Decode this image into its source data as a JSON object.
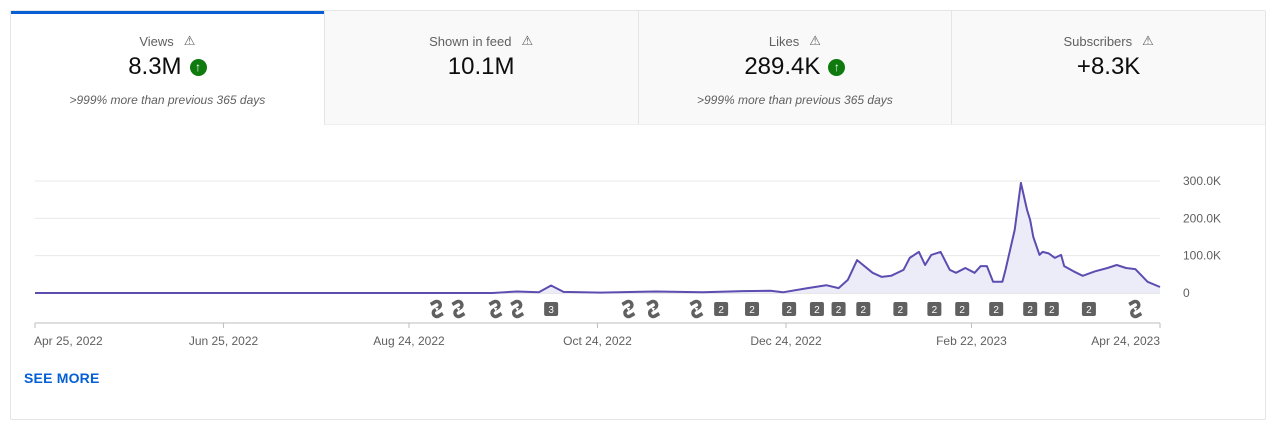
{
  "tabs": [
    {
      "label": "Views",
      "value": "8.3M",
      "trend": "up",
      "comparison": ">999% more than previous 365 days",
      "selected": true
    },
    {
      "label": "Shown in feed",
      "value": "10.1M",
      "trend": null,
      "comparison": "",
      "selected": false
    },
    {
      "label": "Likes",
      "value": "289.4K",
      "trend": "up",
      "comparison": ">999% more than previous 365 days",
      "selected": false
    },
    {
      "label": "Subscribers",
      "value": "+8.3K",
      "trend": null,
      "comparison": "",
      "selected": false
    }
  ],
  "icons": {
    "warning": "⚠",
    "up": "↑",
    "shorts": "shorts-icon"
  },
  "see_more": "SEE MORE",
  "colors": {
    "accent": "#065fd4",
    "line": "#5c4db1",
    "fill": "#ecebf8",
    "trend_up": "#0f7b0f",
    "marker": "#606060"
  },
  "chart_data": {
    "type": "area",
    "xlim": [
      "2022-04-25",
      "2023-04-24"
    ],
    "ylim": [
      0,
      300000
    ],
    "x_ticks": [
      {
        "date": "2022-04-25",
        "label": "Apr 25, 2022"
      },
      {
        "date": "2022-06-25",
        "label": "Jun 25, 2022"
      },
      {
        "date": "2022-08-24",
        "label": "Aug 24, 2022"
      },
      {
        "date": "2022-10-24",
        "label": "Oct 24, 2022"
      },
      {
        "date": "2022-12-24",
        "label": "Dec 24, 2022"
      },
      {
        "date": "2023-02-22",
        "label": "Feb 22, 2023"
      },
      {
        "date": "2023-04-24",
        "label": "Apr 24, 2023"
      }
    ],
    "y_ticks": [
      {
        "value": 0,
        "label": "0"
      },
      {
        "value": 100000,
        "label": "100.0K"
      },
      {
        "value": 200000,
        "label": "200.0K"
      },
      {
        "value": 300000,
        "label": "300.0K"
      }
    ],
    "grid": true,
    "points": [
      [
        "2022-04-25",
        0
      ],
      [
        "2022-09-20",
        0
      ],
      [
        "2022-09-28",
        4000
      ],
      [
        "2022-10-05",
        2000
      ],
      [
        "2022-10-09",
        20000
      ],
      [
        "2022-10-13",
        3000
      ],
      [
        "2022-10-25",
        1000
      ],
      [
        "2022-11-12",
        4000
      ],
      [
        "2022-11-27",
        2000
      ],
      [
        "2022-12-10",
        5000
      ],
      [
        "2022-12-19",
        6000
      ],
      [
        "2022-12-23",
        2000
      ],
      [
        "2022-12-31",
        13000
      ],
      [
        "2023-01-06",
        21000
      ],
      [
        "2023-01-10",
        13000
      ],
      [
        "2023-01-13",
        35000
      ],
      [
        "2023-01-16",
        88000
      ],
      [
        "2023-01-21",
        54000
      ],
      [
        "2023-01-24",
        43000
      ],
      [
        "2023-01-27",
        46000
      ],
      [
        "2023-01-31",
        62000
      ],
      [
        "2023-02-02",
        94000
      ],
      [
        "2023-02-05",
        110000
      ],
      [
        "2023-02-07",
        75000
      ],
      [
        "2023-02-09",
        102000
      ],
      [
        "2023-02-12",
        110000
      ],
      [
        "2023-02-15",
        62000
      ],
      [
        "2023-02-17",
        54000
      ],
      [
        "2023-02-20",
        67000
      ],
      [
        "2023-02-23",
        54000
      ],
      [
        "2023-02-25",
        72000
      ],
      [
        "2023-02-27",
        72000
      ],
      [
        "2023-03-01",
        30000
      ],
      [
        "2023-03-04",
        30000
      ],
      [
        "2023-03-05",
        62000
      ],
      [
        "2023-03-08",
        169000
      ],
      [
        "2023-03-10",
        295000
      ],
      [
        "2023-03-12",
        222000
      ],
      [
        "2023-03-13",
        195000
      ],
      [
        "2023-03-14",
        150000
      ],
      [
        "2023-03-16",
        102000
      ],
      [
        "2023-03-17",
        110000
      ],
      [
        "2023-03-19",
        106000
      ],
      [
        "2023-03-21",
        94000
      ],
      [
        "2023-03-23",
        102000
      ],
      [
        "2023-03-24",
        72000
      ],
      [
        "2023-03-27",
        58000
      ],
      [
        "2023-03-30",
        46000
      ],
      [
        "2023-04-03",
        58000
      ],
      [
        "2023-04-07",
        67000
      ],
      [
        "2023-04-10",
        75000
      ],
      [
        "2023-04-13",
        67000
      ],
      [
        "2023-04-16",
        64000
      ],
      [
        "2023-04-20",
        30000
      ],
      [
        "2023-04-24",
        16000
      ]
    ],
    "markers": [
      {
        "date": "2022-09-02",
        "type": "shorts"
      },
      {
        "date": "2022-09-09",
        "type": "shorts"
      },
      {
        "date": "2022-09-21",
        "type": "shorts"
      },
      {
        "date": "2022-09-28",
        "type": "shorts"
      },
      {
        "date": "2022-10-09",
        "type": "count",
        "label": "3"
      },
      {
        "date": "2022-11-03",
        "type": "shorts"
      },
      {
        "date": "2022-11-11",
        "type": "shorts"
      },
      {
        "date": "2022-11-25",
        "type": "shorts"
      },
      {
        "date": "2022-12-03",
        "type": "count",
        "label": "2"
      },
      {
        "date": "2022-12-13",
        "type": "count",
        "label": "2"
      },
      {
        "date": "2022-12-25",
        "type": "count",
        "label": "2"
      },
      {
        "date": "2023-01-03",
        "type": "count",
        "label": "2"
      },
      {
        "date": "2023-01-10",
        "type": "count",
        "label": "2"
      },
      {
        "date": "2023-01-18",
        "type": "count",
        "label": "2"
      },
      {
        "date": "2023-01-30",
        "type": "count",
        "label": "2"
      },
      {
        "date": "2023-02-10",
        "type": "count",
        "label": "2"
      },
      {
        "date": "2023-02-19",
        "type": "count",
        "label": "2"
      },
      {
        "date": "2023-03-02",
        "type": "count",
        "label": "2"
      },
      {
        "date": "2023-03-13",
        "type": "count",
        "label": "2"
      },
      {
        "date": "2023-03-20",
        "type": "count",
        "label": "2"
      },
      {
        "date": "2023-04-01",
        "type": "count",
        "label": "2"
      },
      {
        "date": "2023-04-16",
        "type": "shorts"
      }
    ]
  }
}
